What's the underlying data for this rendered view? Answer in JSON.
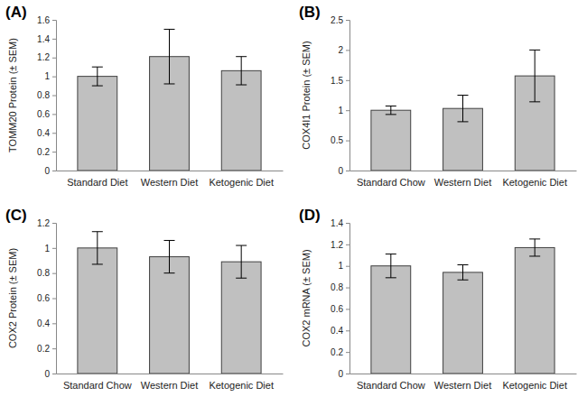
{
  "chart_data": [
    {
      "type": "bar",
      "title": "(A)",
      "y_label": "TOMM20 Protein (± SEM)",
      "categories": [
        "Standard Diet",
        "Western Diet",
        "Ketogenic Diet"
      ],
      "values": [
        1.0,
        1.21,
        1.06
      ],
      "errors": [
        0.1,
        0.29,
        0.15
      ],
      "color": "#c0c0c0",
      "ylim": [
        0,
        1.6
      ],
      "yticks": [
        0,
        0.2,
        0.4,
        0.6,
        0.8,
        1,
        1.2,
        1.4,
        1.6
      ],
      "grid": false
    },
    {
      "type": "bar",
      "title": "(B)",
      "y_label": "COX4I1 Protein (± SEM)",
      "categories": [
        "Standard Chow",
        "Western Diet",
        "Ketogenic Diet"
      ],
      "values": [
        1.0,
        1.03,
        1.57
      ],
      "errors": [
        0.07,
        0.22,
        0.43
      ],
      "color": "#c0c0c0",
      "ylim": [
        0,
        2.5
      ],
      "yticks": [
        0,
        0.5,
        1,
        1.5,
        2,
        2.5
      ],
      "grid": false
    },
    {
      "type": "bar",
      "title": "(C)",
      "y_label": "COX2 Protein (± SEM)",
      "categories": [
        "Standard Chow",
        "Western Diet",
        "Ketogenic Diet"
      ],
      "values": [
        1.0,
        0.93,
        0.89
      ],
      "errors": [
        0.13,
        0.13,
        0.13
      ],
      "color": "#c0c0c0",
      "ylim": [
        0,
        1.2
      ],
      "yticks": [
        0,
        0.2,
        0.4,
        0.6,
        0.8,
        1,
        1.2
      ],
      "grid": false
    },
    {
      "type": "bar",
      "title": "(D)",
      "y_label": "COX2 mRNA (± SEM)",
      "categories": [
        "Standard Chow",
        "Western Diet",
        "Ketogenic Diet"
      ],
      "values": [
        1.0,
        0.94,
        1.17
      ],
      "errors": [
        0.11,
        0.07,
        0.08
      ],
      "color": "#c0c0c0",
      "ylim": [
        0,
        1.4
      ],
      "yticks": [
        0,
        0.2,
        0.4,
        0.6,
        0.8,
        1,
        1.2,
        1.4
      ],
      "grid": false
    }
  ]
}
